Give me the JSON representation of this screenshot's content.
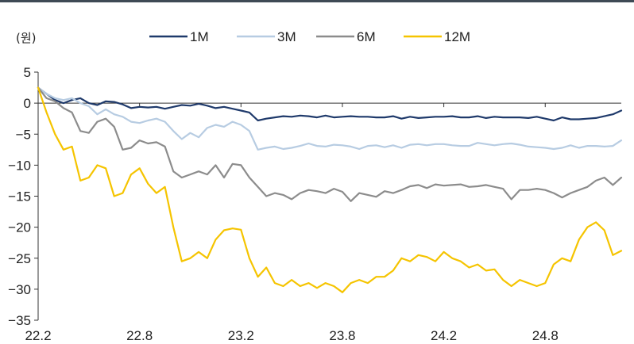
{
  "chart_data": {
    "type": "line",
    "unit_label": "(원)",
    "ylim": [
      -35,
      5
    ],
    "y_ticks": [
      "5",
      "0",
      "−5",
      "−10",
      "−15",
      "−20",
      "−25",
      "−30",
      "−35"
    ],
    "y_tick_values": [
      5,
      0,
      -5,
      -10,
      -15,
      -20,
      -25,
      -30,
      -35
    ],
    "x_tick_labels": [
      "22.2",
      "22.8",
      "23.2",
      "23.8",
      "24.2",
      "24.8"
    ],
    "x_tick_values": [
      0,
      6,
      12,
      18,
      24,
      30
    ],
    "xlim": [
      0,
      34.5
    ],
    "legend_position": "top",
    "series": [
      {
        "name": "1M",
        "color": "#1f3a6b",
        "x": [
          0,
          0.5,
          1,
          1.5,
          2,
          2.5,
          3,
          3.5,
          4,
          4.5,
          5,
          5.5,
          6,
          6.5,
          7,
          7.5,
          8,
          8.5,
          9,
          9.5,
          10,
          10.5,
          11,
          11.5,
          12,
          12.5,
          13,
          13.5,
          14,
          14.5,
          15,
          15.5,
          16,
          16.5,
          17,
          17.5,
          18,
          18.5,
          19,
          19.5,
          20,
          20.5,
          21,
          21.5,
          22,
          22.5,
          23,
          23.5,
          24,
          24.5,
          25,
          25.5,
          26,
          26.5,
          27,
          27.5,
          28,
          28.5,
          29,
          29.5,
          30,
          30.5,
          31,
          31.5,
          32,
          32.5,
          33,
          33.5,
          34,
          34.5
        ],
        "values": [
          2.5,
          1.5,
          0.5,
          0,
          0.5,
          0.8,
          0,
          -0.3,
          0.3,
          0.2,
          -0.2,
          -0.8,
          -0.6,
          -0.7,
          -0.6,
          -0.9,
          -0.6,
          -0.3,
          -0.4,
          -0.1,
          -0.4,
          -0.8,
          -0.6,
          -0.9,
          -1.2,
          -1.5,
          -2.8,
          -2.5,
          -2.3,
          -2.1,
          -2.2,
          -2.0,
          -2.1,
          -2.3,
          -2.0,
          -2.3,
          -2.2,
          -2.1,
          -2.2,
          -2.2,
          -2.3,
          -2.3,
          -2.1,
          -2.5,
          -2.2,
          -2.4,
          -2.3,
          -2.2,
          -2.2,
          -2.1,
          -2.3,
          -2.3,
          -2.1,
          -2.4,
          -2.2,
          -2.3,
          -2.3,
          -2.3,
          -2.4,
          -2.2,
          -2.5,
          -2.8,
          -2.3,
          -2.6,
          -2.6,
          -2.5,
          -2.4,
          -2.1,
          -1.8,
          -1.2
        ]
      },
      {
        "name": "3M",
        "color": "#b7cce2",
        "x": [
          0,
          0.5,
          1,
          1.5,
          2,
          2.5,
          3,
          3.5,
          4,
          4.5,
          5,
          5.5,
          6,
          6.5,
          7,
          7.5,
          8,
          8.5,
          9,
          9.5,
          10,
          10.5,
          11,
          11.5,
          12,
          12.5,
          13,
          13.5,
          14,
          14.5,
          15,
          15.5,
          16,
          16.5,
          17,
          17.5,
          18,
          18.5,
          19,
          19.5,
          20,
          20.5,
          21,
          21.5,
          22,
          22.5,
          23,
          23.5,
          24,
          24.5,
          25,
          25.5,
          26,
          26.5,
          27,
          27.5,
          28,
          28.5,
          29,
          29.5,
          30,
          30.5,
          31,
          31.5,
          32,
          32.5,
          33,
          33.5,
          34,
          34.5
        ],
        "values": [
          2.5,
          1.5,
          0.8,
          0.5,
          0.8,
          0,
          -0.5,
          -1.8,
          -1.0,
          -1.8,
          -2.2,
          -3.0,
          -3.2,
          -2.8,
          -2.5,
          -3.0,
          -4.5,
          -5.8,
          -4.8,
          -5.5,
          -4.0,
          -3.5,
          -3.8,
          -3.0,
          -3.5,
          -4.5,
          -7.5,
          -7.2,
          -7.0,
          -7.4,
          -7.2,
          -6.9,
          -6.5,
          -6.9,
          -7.0,
          -6.7,
          -6.8,
          -7.0,
          -7.4,
          -6.9,
          -6.8,
          -7.1,
          -6.8,
          -7.2,
          -6.7,
          -6.6,
          -6.8,
          -6.6,
          -6.6,
          -6.8,
          -6.9,
          -6.9,
          -6.4,
          -6.6,
          -6.8,
          -6.6,
          -6.5,
          -6.7,
          -7.0,
          -7.1,
          -7.2,
          -7.4,
          -7.2,
          -6.8,
          -7.2,
          -6.9,
          -6.9,
          -7.0,
          -6.9,
          -6.0
        ]
      },
      {
        "name": "6M",
        "color": "#8c8c8c",
        "x": [
          0,
          0.5,
          1,
          1.5,
          2,
          2.5,
          3,
          3.5,
          4,
          4.5,
          5,
          5.5,
          6,
          6.5,
          7,
          7.5,
          8,
          8.5,
          9,
          9.5,
          10,
          10.5,
          11,
          11.5,
          12,
          12.5,
          13,
          13.5,
          14,
          14.5,
          15,
          15.5,
          16,
          16.5,
          17,
          17.5,
          18,
          18.5,
          19,
          19.5,
          20,
          20.5,
          21,
          21.5,
          22,
          22.5,
          23,
          23.5,
          24,
          24.5,
          25,
          25.5,
          26,
          26.5,
          27,
          27.5,
          28,
          28.5,
          29,
          29.5,
          30,
          30.5,
          31,
          31.5,
          32,
          32.5,
          33,
          33.5,
          34,
          34.5
        ],
        "values": [
          2.5,
          0.8,
          0.3,
          -0.8,
          -1.5,
          -4.5,
          -4.8,
          -3.0,
          -2.5,
          -3.8,
          -7.5,
          -7.2,
          -6.0,
          -6.5,
          -6.3,
          -7.0,
          -11.0,
          -12.0,
          -11.5,
          -11.0,
          -11.5,
          -10.0,
          -12.0,
          -9.8,
          -10.0,
          -12.0,
          -13.5,
          -15.0,
          -14.5,
          -14.8,
          -15.5,
          -14.5,
          -14.0,
          -14.2,
          -14.5,
          -13.8,
          -14.3,
          -15.8,
          -14.5,
          -14.8,
          -15.1,
          -14.2,
          -14.5,
          -14.0,
          -13.4,
          -13.2,
          -13.7,
          -13.1,
          -13.3,
          -13.2,
          -13.1,
          -13.5,
          -13.4,
          -13.2,
          -13.5,
          -13.8,
          -15.5,
          -14.0,
          -14.0,
          -13.8,
          -14.0,
          -14.5,
          -15.2,
          -14.5,
          -14.0,
          -13.5,
          -12.5,
          -12.0,
          -13.2,
          -12.0
        ]
      },
      {
        "name": "12M",
        "color": "#f5c400",
        "x": [
          0,
          0.5,
          1,
          1.5,
          2,
          2.5,
          3,
          3.5,
          4,
          4.5,
          5,
          5.5,
          6,
          6.5,
          7,
          7.5,
          8,
          8.5,
          9,
          9.5,
          10,
          10.5,
          11,
          11.5,
          12,
          12.5,
          13,
          13.5,
          14,
          14.5,
          15,
          15.5,
          16,
          16.5,
          17,
          17.5,
          18,
          18.5,
          19,
          19.5,
          20,
          20.5,
          21,
          21.5,
          22,
          22.5,
          23,
          23.5,
          24,
          24.5,
          25,
          25.5,
          26,
          26.5,
          27,
          27.5,
          28,
          28.5,
          29,
          29.5,
          30,
          30.5,
          31,
          31.5,
          32,
          32.5,
          33,
          33.5,
          34,
          34.5
        ],
        "values": [
          2.5,
          -1.5,
          -5.0,
          -7.5,
          -7.0,
          -12.5,
          -12.0,
          -10.0,
          -10.5,
          -15.0,
          -14.5,
          -11.5,
          -10.5,
          -13.0,
          -14.5,
          -13.5,
          -20.0,
          -25.5,
          -25.0,
          -24.0,
          -25.0,
          -22.0,
          -20.5,
          -20.2,
          -20.4,
          -25.0,
          -28.0,
          -26.5,
          -29.0,
          -29.5,
          -28.5,
          -29.5,
          -29.0,
          -29.8,
          -29.0,
          -29.5,
          -30.5,
          -29.0,
          -28.5,
          -29.0,
          -28.0,
          -28.0,
          -27.0,
          -25.0,
          -25.5,
          -24.5,
          -24.8,
          -25.5,
          -24.0,
          -25.0,
          -25.5,
          -26.5,
          -26.0,
          -27.0,
          -26.8,
          -28.5,
          -29.5,
          -28.5,
          -29.0,
          -29.5,
          -29.0,
          -26.0,
          -25.0,
          -25.5,
          -22.0,
          -20.0,
          -19.2,
          -20.5,
          -24.5,
          -23.8
        ]
      }
    ]
  }
}
